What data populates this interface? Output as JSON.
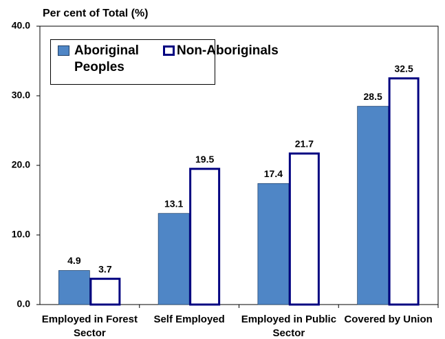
{
  "chart_data": {
    "type": "bar",
    "ylabel": "Per cent of Total (%)",
    "categories": [
      "Employed in Forest Sector",
      "Self Employed",
      "Employed in Public Sector",
      "Covered by Union"
    ],
    "series": [
      {
        "name": "Aboriginal Peoples",
        "color": "#4f86c6",
        "edgecolor": "#1f3f66",
        "values": [
          4.9,
          13.1,
          17.4,
          28.5
        ]
      },
      {
        "name": "Non-Aboriginals",
        "color": "#ffffff",
        "edgecolor": "#000080",
        "values": [
          3.7,
          19.5,
          21.7,
          32.5
        ]
      }
    ],
    "ylim": [
      0,
      40
    ],
    "yticks": [
      {
        "value": 0,
        "label": "0.0"
      },
      {
        "value": 10,
        "label": "10.0"
      },
      {
        "value": 20,
        "label": "20.0"
      },
      {
        "value": 30,
        "label": "30.0"
      },
      {
        "value": 40,
        "label": "40.0"
      }
    ],
    "legend": "upper left"
  }
}
